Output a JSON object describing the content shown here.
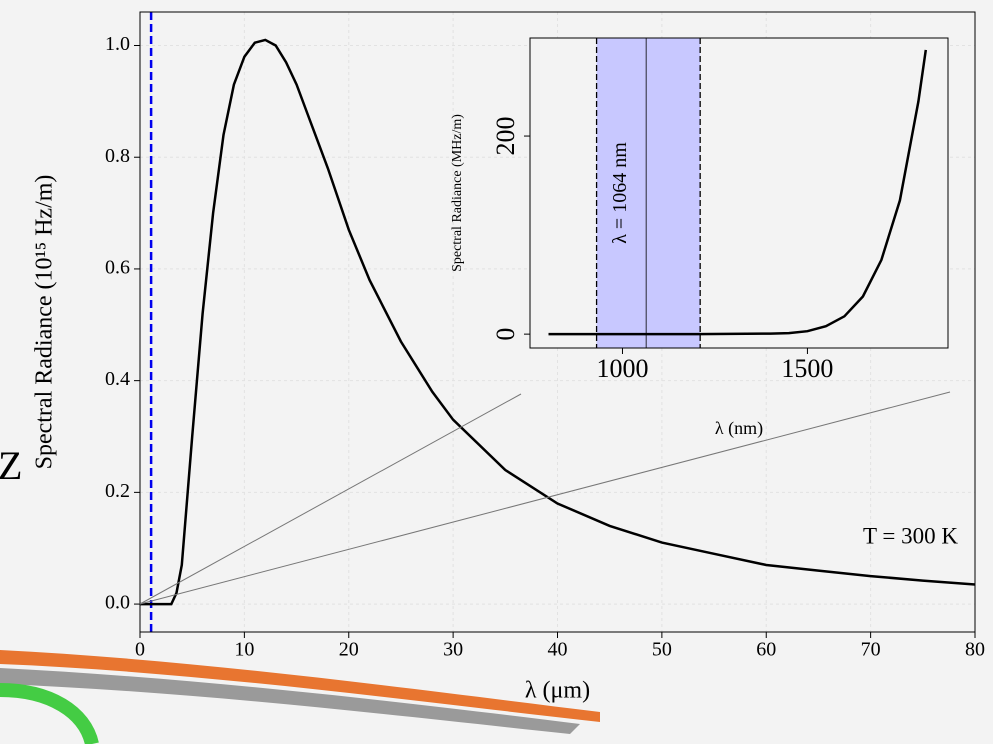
{
  "side_text": "Z",
  "chart_data": [
    {
      "type": "line",
      "x_label": "λ (μm)",
      "y_label": "Spectral Radiance (10¹⁵ Hz/m)",
      "annotation": "T = 300 K",
      "x": [
        0,
        2,
        3,
        3.5,
        4,
        5,
        6,
        7,
        8,
        9,
        10,
        11,
        12,
        13,
        14,
        15,
        16,
        18,
        20,
        22,
        25,
        28,
        30,
        35,
        40,
        45,
        50,
        55,
        60,
        65,
        70,
        75,
        80
      ],
      "series": [
        {
          "color": "#000000",
          "values": [
            0,
            0,
            0,
            0.02,
            0.07,
            0.3,
            0.52,
            0.7,
            0.84,
            0.93,
            0.98,
            1.005,
            1.01,
            1.0,
            0.97,
            0.93,
            0.88,
            0.78,
            0.67,
            0.58,
            0.47,
            0.38,
            0.33,
            0.24,
            0.18,
            0.14,
            0.11,
            0.09,
            0.07,
            0.06,
            0.05,
            0.042,
            0.035
          ]
        }
      ],
      "vline": 1.064,
      "vline_color": "#0000ee",
      "xlim": [
        0,
        80
      ],
      "ylim": [
        -0.05,
        1.06
      ],
      "xticks": [
        0,
        10,
        20,
        30,
        40,
        50,
        60,
        70,
        80
      ],
      "yticks": [
        {
          "value": 0,
          "label": "0.0"
        },
        0.2,
        0.4,
        0.6,
        0.8,
        {
          "value": 1,
          "label": "1.0"
        }
      ],
      "grid": true
    },
    {
      "type": "line",
      "x_label": "λ (nm)",
      "y_label": "Spectral Radiance (MHz/m)",
      "annotation": "λ = 1064 nm",
      "x": [
        800,
        1000,
        1200,
        1400,
        1450,
        1500,
        1550,
        1600,
        1650,
        1700,
        1750,
        1800,
        1820
      ],
      "series": [
        {
          "color": "#000000",
          "values": [
            0,
            0,
            0,
            0.5,
            1,
            3,
            8,
            18,
            38,
            75,
            135,
            235,
            287
          ]
        }
      ],
      "span": [
        930,
        1210
      ],
      "span_color": "#c8c8ff",
      "vline": 1064,
      "xlim": [
        750,
        1880
      ],
      "ylim": [
        -14,
        299
      ],
      "xticks": [
        1000,
        1500
      ],
      "yticks": [
        0,
        200
      ],
      "grid": false
    }
  ]
}
